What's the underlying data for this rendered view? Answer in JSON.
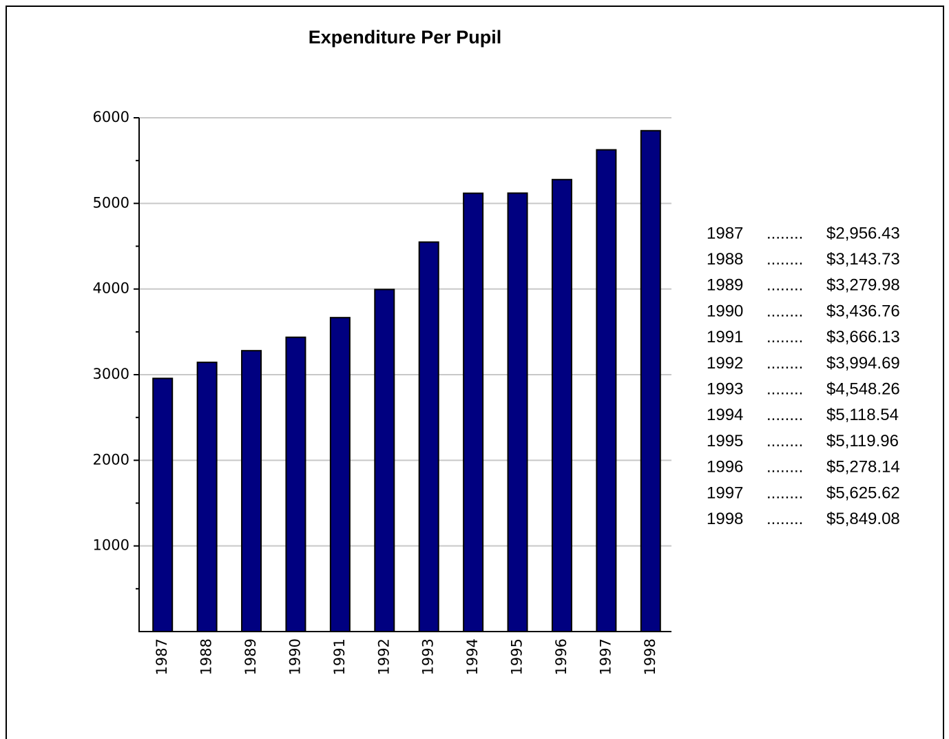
{
  "chart_data": {
    "type": "bar",
    "title": "Expenditure Per Pupil",
    "categories": [
      "1987",
      "1988",
      "1989",
      "1990",
      "1991",
      "1992",
      "1993",
      "1994",
      "1995",
      "1996",
      "1997",
      "1998"
    ],
    "values": [
      2956.43,
      3143.73,
      3279.98,
      3436.76,
      3666.13,
      3994.69,
      4548.26,
      5118.54,
      5119.96,
      5278.14,
      5625.62,
      5849.08
    ],
    "value_labels": [
      "$2,956.43",
      "$3,143.73",
      "$3,279.98",
      "$3,436.76",
      "$3,666.13",
      "$3,994.69",
      "$4,548.26",
      "$5,118.54",
      "$5,119.96",
      "$5,278.14",
      "$5,625.62",
      "$5,849.08"
    ],
    "separator": "........",
    "color": "#000080",
    "ylim": [
      0,
      6000
    ],
    "yticks": [
      1000,
      2000,
      3000,
      4000,
      5000,
      6000
    ],
    "yticks_minor": [
      500,
      1500,
      2500,
      3500,
      4500,
      5500
    ],
    "grid": true
  }
}
